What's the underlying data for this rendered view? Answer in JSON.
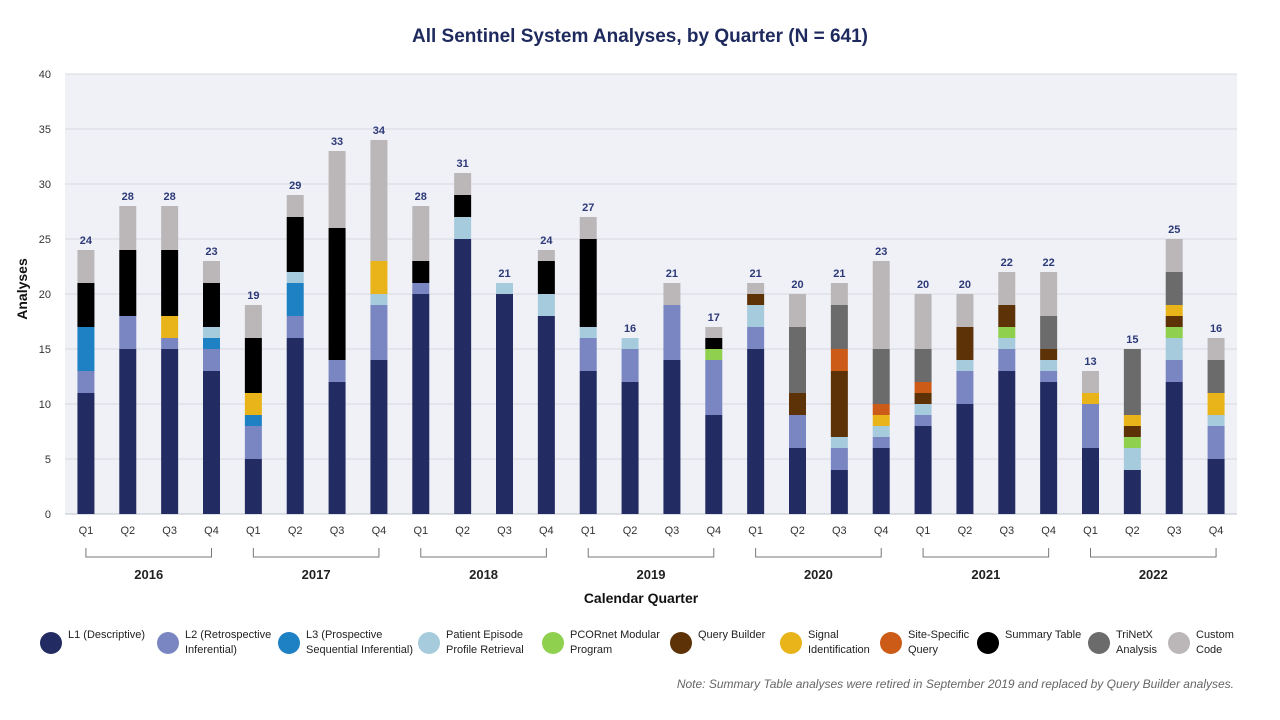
{
  "chart_data": {
    "type": "bar",
    "stacked": true,
    "title": "All Sentinel System Analyses, by Quarter (N = 641)",
    "xlabel": "Calendar Quarter",
    "ylabel": "Analyses",
    "ylim": [
      0,
      40
    ],
    "yticks": [
      "0",
      "5",
      "10",
      "15",
      "20",
      "25",
      "30",
      "35",
      "40"
    ],
    "grid": true,
    "legend_position": "bottom",
    "years": [
      "2016",
      "2017",
      "2018",
      "2019",
      "2020",
      "2021",
      "2022"
    ],
    "categories": [
      "Q1",
      "Q2",
      "Q3",
      "Q4",
      "Q1",
      "Q2",
      "Q3",
      "Q4",
      "Q1",
      "Q2",
      "Q3",
      "Q4",
      "Q1",
      "Q2",
      "Q3",
      "Q4",
      "Q1",
      "Q2",
      "Q3",
      "Q4",
      "Q1",
      "Q2",
      "Q3",
      "Q4",
      "Q1",
      "Q2",
      "Q3",
      "Q4"
    ],
    "totals": [
      "24",
      "28",
      "28",
      "23",
      "19",
      "29",
      "33",
      "34",
      "28",
      "31",
      "21",
      "24",
      "27",
      "16",
      "21",
      "17",
      "21",
      "20",
      "21",
      "23",
      "20",
      "20",
      "22",
      "22",
      "13",
      "15",
      "25",
      "16"
    ],
    "series": [
      {
        "name": "L1 (Descriptive)",
        "color": "#232c62",
        "values": [
          11,
          15,
          15,
          13,
          5,
          16,
          12,
          14,
          20,
          25,
          20,
          18,
          13,
          12,
          14,
          9,
          15,
          6,
          4,
          6,
          8,
          10,
          13,
          12,
          6,
          4,
          12,
          5
        ]
      },
      {
        "name": "L2 (Retrospective\nInferential)",
        "color": "#7a86c2",
        "values": [
          2,
          3,
          1,
          2,
          3,
          2,
          2,
          5,
          1,
          0,
          0,
          0,
          3,
          3,
          5,
          5,
          2,
          3,
          2,
          1,
          1,
          3,
          2,
          1,
          4,
          0,
          2,
          3
        ]
      },
      {
        "name": "L3 (Prospective\nSequential Inferential)",
        "color": "#1e81c4",
        "values": [
          4,
          0,
          0,
          1,
          1,
          3,
          0,
          0,
          0,
          0,
          0,
          0,
          0,
          0,
          0,
          0,
          0,
          0,
          0,
          0,
          0,
          0,
          0,
          0,
          0,
          0,
          0,
          0
        ]
      },
      {
        "name": "Patient Episode\nProfile Retrieval",
        "color": "#a6cbdd",
        "values": [
          0,
          0,
          0,
          1,
          0,
          1,
          0,
          1,
          0,
          2,
          1,
          2,
          1,
          1,
          0,
          0,
          2,
          0,
          1,
          1,
          1,
          1,
          1,
          1,
          0,
          2,
          2,
          1
        ]
      },
      {
        "name": "PCORnet Modular\nProgram",
        "color": "#8fd14f",
        "values": [
          0,
          0,
          0,
          0,
          0,
          0,
          0,
          0,
          0,
          0,
          0,
          0,
          0,
          0,
          0,
          1,
          0,
          0,
          0,
          0,
          0,
          0,
          1,
          0,
          0,
          1,
          1,
          0
        ]
      },
      {
        "name": "Query Builder",
        "color": "#5c3206",
        "values": [
          0,
          0,
          0,
          0,
          0,
          0,
          0,
          0,
          0,
          0,
          0,
          0,
          0,
          0,
          0,
          0,
          1,
          2,
          6,
          0,
          1,
          3,
          2,
          1,
          0,
          1,
          1,
          0
        ]
      },
      {
        "name": "Signal\nIdentification",
        "color": "#e9b41a",
        "values": [
          0,
          0,
          2,
          0,
          2,
          0,
          0,
          3,
          0,
          0,
          0,
          0,
          0,
          0,
          0,
          0,
          0,
          0,
          0,
          1,
          0,
          0,
          0,
          0,
          1,
          1,
          1,
          2
        ]
      },
      {
        "name": "Site-Specific\nQuery",
        "color": "#cc5b17",
        "values": [
          0,
          0,
          0,
          0,
          0,
          0,
          0,
          0,
          0,
          0,
          0,
          0,
          0,
          0,
          0,
          0,
          0,
          0,
          2,
          1,
          1,
          0,
          0,
          0,
          0,
          0,
          0,
          0
        ]
      },
      {
        "name": "Summary Table",
        "color": "#000000",
        "values": [
          4,
          6,
          6,
          4,
          5,
          5,
          12,
          0,
          2,
          2,
          0,
          3,
          8,
          0,
          0,
          1,
          0,
          0,
          0,
          0,
          0,
          0,
          0,
          0,
          0,
          0,
          0,
          0
        ]
      },
      {
        "name": "TriNetX\nAnalysis",
        "color": "#6b6b6b",
        "values": [
          0,
          0,
          0,
          0,
          0,
          0,
          0,
          0,
          0,
          0,
          0,
          0,
          0,
          0,
          0,
          0,
          0,
          6,
          4,
          5,
          3,
          0,
          0,
          3,
          0,
          6,
          3,
          3
        ]
      },
      {
        "name": "Custom\nCode",
        "color": "#bbb7b8",
        "values": [
          3,
          4,
          4,
          2,
          3,
          2,
          7,
          11,
          5,
          2,
          0,
          1,
          2,
          0,
          2,
          1,
          1,
          3,
          2,
          8,
          5,
          3,
          3,
          4,
          2,
          0,
          3,
          2
        ]
      }
    ],
    "note": "Note: Summary Table analyses were retired in September 2019 and replaced by Query Builder analyses."
  }
}
